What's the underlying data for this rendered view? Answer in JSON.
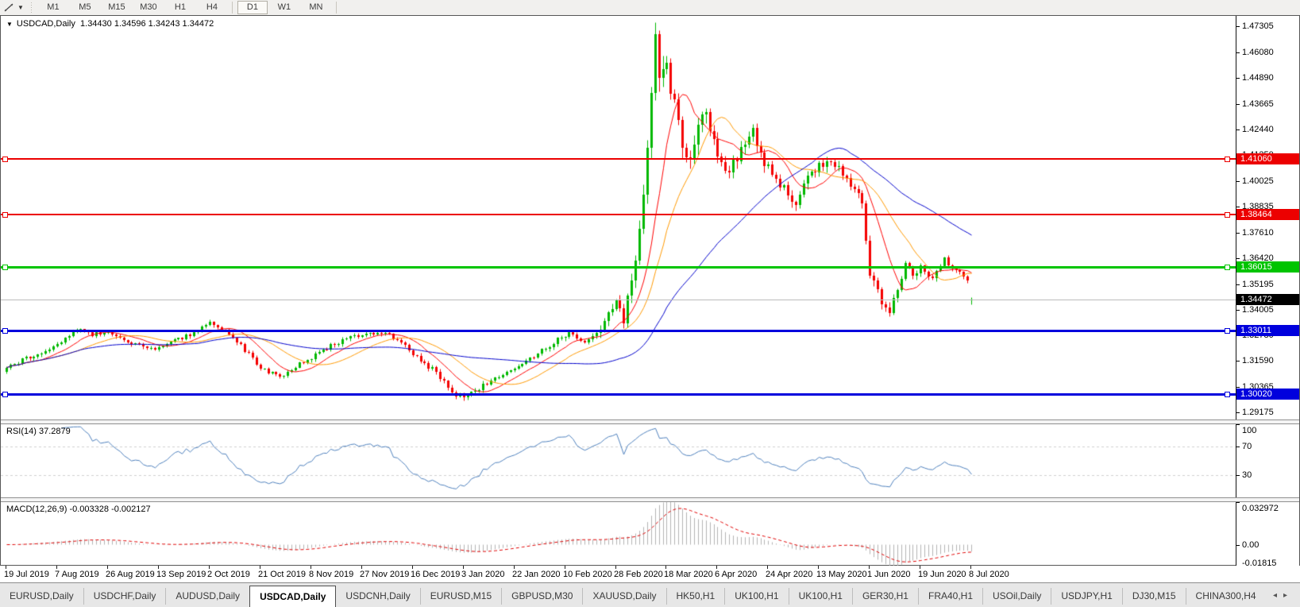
{
  "toolbar": {
    "cursor_tool_icon": "trendline-cursor",
    "timeframes": [
      "M1",
      "M5",
      "M15",
      "M30",
      "H1",
      "H4",
      "D1",
      "W1",
      "MN"
    ],
    "active_timeframe": "D1"
  },
  "chart_title": {
    "symbol": "USDCAD,Daily",
    "open": "1.34430",
    "high": "1.34596",
    "low": "1.34243",
    "close": "1.34472"
  },
  "price_axis": {
    "labels": [
      "1.47305",
      "1.46080",
      "1.44890",
      "1.43665",
      "1.42440",
      "1.41250",
      "1.40025",
      "1.38835",
      "1.37610",
      "1.36420",
      "1.35195",
      "1.34005",
      "1.32780",
      "1.31590",
      "1.30365",
      "1.29175"
    ],
    "top_price": 1.4779,
    "bottom_price": 1.2884
  },
  "hlines": [
    {
      "label": "1.41060",
      "price": 1.4106,
      "color": "#ec0000",
      "thickness": 2
    },
    {
      "label": "1.38464",
      "price": 1.38464,
      "color": "#ec0000",
      "thickness": 2
    },
    {
      "label": "1.36015",
      "price": 1.36015,
      "color": "#00c400",
      "thickness": 3
    },
    {
      "label": "1.33011",
      "price": 1.33011,
      "color": "#0000dd",
      "thickness": 3
    },
    {
      "label": "1.30020",
      "price": 1.3002,
      "color": "#0000dd",
      "thickness": 3
    }
  ],
  "current_price": {
    "label": "1.34472",
    "price": 1.34472,
    "badge_color": "#000000",
    "line_color": "#bbbbbb"
  },
  "chart_data": {
    "type": "candlestick",
    "symbol": "USDCAD",
    "timeframe": "Daily",
    "bars": 248,
    "up_color": "#00b800",
    "down_color": "#f40000",
    "anchors": [
      [
        0,
        1.3125
      ],
      [
        4,
        1.3165
      ],
      [
        9,
        1.3195
      ],
      [
        14,
        1.3255
      ],
      [
        18,
        1.3305
      ],
      [
        22,
        1.328
      ],
      [
        26,
        1.33
      ],
      [
        30,
        1.3255
      ],
      [
        35,
        1.323
      ],
      [
        39,
        1.322
      ],
      [
        43,
        1.3255
      ],
      [
        48,
        1.329
      ],
      [
        52,
        1.334
      ],
      [
        56,
        1.33
      ],
      [
        60,
        1.323
      ],
      [
        65,
        1.313
      ],
      [
        70,
        1.308
      ],
      [
        74,
        1.3135
      ],
      [
        78,
        1.3175
      ],
      [
        83,
        1.323
      ],
      [
        88,
        1.327
      ],
      [
        93,
        1.3295
      ],
      [
        98,
        1.328
      ],
      [
        102,
        1.323
      ],
      [
        106,
        1.316
      ],
      [
        110,
        1.311
      ],
      [
        114,
        1.301
      ],
      [
        117,
        1.299
      ],
      [
        120,
        1.302
      ],
      [
        124,
        1.307
      ],
      [
        128,
        1.3105
      ],
      [
        132,
        1.314
      ],
      [
        136,
        1.3195
      ],
      [
        140,
        1.3245
      ],
      [
        144,
        1.329
      ],
      [
        148,
        1.3255
      ],
      [
        152,
        1.331
      ],
      [
        156,
        1.343
      ],
      [
        158,
        1.336
      ],
      [
        161,
        1.365
      ],
      [
        163,
        1.392
      ],
      [
        165,
        1.442
      ],
      [
        166,
        1.465
      ],
      [
        167,
        1.45
      ],
      [
        169,
        1.454
      ],
      [
        171,
        1.435
      ],
      [
        173,
        1.418
      ],
      [
        175,
        1.408
      ],
      [
        177,
        1.43
      ],
      [
        179,
        1.433
      ],
      [
        182,
        1.412
      ],
      [
        185,
        1.405
      ],
      [
        188,
        1.415
      ],
      [
        191,
        1.423
      ],
      [
        194,
        1.408
      ],
      [
        197,
        1.403
      ],
      [
        200,
        1.393
      ],
      [
        202,
        1.389
      ],
      [
        205,
        1.402
      ],
      [
        208,
        1.407
      ],
      [
        211,
        1.411
      ],
      [
        214,
        1.403
      ],
      [
        217,
        1.396
      ],
      [
        219,
        1.39
      ],
      [
        221,
        1.357
      ],
      [
        224,
        1.344
      ],
      [
        226,
        1.339
      ],
      [
        228,
        1.348
      ],
      [
        230,
        1.361
      ],
      [
        232,
        1.356
      ],
      [
        234,
        1.36
      ],
      [
        236,
        1.3545
      ],
      [
        238,
        1.357
      ],
      [
        240,
        1.364
      ],
      [
        242,
        1.359
      ],
      [
        245,
        1.356
      ],
      [
        246,
        1.353
      ],
      [
        247,
        1.34472
      ]
    ],
    "volatility_anchors": [
      [
        0,
        0.002
      ],
      [
        100,
        0.002
      ],
      [
        110,
        0.0026
      ],
      [
        117,
        0.0028
      ],
      [
        130,
        0.0018
      ],
      [
        150,
        0.003
      ],
      [
        158,
        0.006
      ],
      [
        163,
        0.01
      ],
      [
        168,
        0.012
      ],
      [
        175,
        0.009
      ],
      [
        190,
        0.006
      ],
      [
        205,
        0.0045
      ],
      [
        218,
        0.005
      ],
      [
        226,
        0.0045
      ],
      [
        234,
        0.003
      ],
      [
        247,
        0.0016
      ]
    ],
    "last_bar": {
      "open": 1.3443,
      "high": 1.34596,
      "low": 1.34243,
      "close": 1.34472
    },
    "moving_averages": [
      {
        "period": 10,
        "color": "#ff0000"
      },
      {
        "period": 20,
        "color": "#ff9900"
      },
      {
        "period": 50,
        "color": "#0000cc"
      }
    ]
  },
  "rsi": {
    "label": "RSI(14) 37.2879",
    "period": 14,
    "value": 37.2879,
    "axis_labels": [
      "100",
      "70",
      "30"
    ],
    "axis_values": [
      100,
      70,
      30
    ],
    "levels": [
      70,
      30
    ],
    "line_color": "#4f81bd",
    "range": [
      0,
      100
    ]
  },
  "macd": {
    "label": "MACD(12,26,9) -0.003328 -0.002127",
    "macd_value": -0.003328,
    "signal_value": -0.002127,
    "axis_labels": [
      "0.032972",
      "0.00",
      "-0.01815"
    ],
    "axis_values": [
      0.032972,
      0,
      -0.01815
    ],
    "max": 0.032972,
    "min": -0.01815,
    "hist_color": "#b3b3b3",
    "signal_color": "#e00000"
  },
  "date_axis": [
    "19 Jul 2019",
    "7 Aug 2019",
    "26 Aug 2019",
    "13 Sep 2019",
    "2 Oct 2019",
    "21 Oct 2019",
    "8 Nov 2019",
    "27 Nov 2019",
    "16 Dec 2019",
    "3 Jan 2020",
    "22 Jan 2020",
    "10 Feb 2020",
    "28 Feb 2020",
    "18 Mar 2020",
    "6 Apr 2020",
    "24 Apr 2020",
    "13 May 2020",
    "1 Jun 2020",
    "19 Jun 2020",
    "8 Jul 2020"
  ],
  "tabs": {
    "items": [
      "EURUSD,Daily",
      "USDCHF,Daily",
      "AUDUSD,Daily",
      "USDCAD,Daily",
      "USDCNH,Daily",
      "EURUSD,M15",
      "GBPUSD,M30",
      "XAUUSD,Daily",
      "HK50,H1",
      "UK100,H1",
      "UK100,H1",
      "GER30,H1",
      "FRA40,H1",
      "USOil,Daily",
      "USDJPY,H1",
      "DJ30,M15",
      "CHINA300,H4"
    ],
    "active_index": 3,
    "scroll_left": "◂",
    "scroll_right": "▸"
  }
}
